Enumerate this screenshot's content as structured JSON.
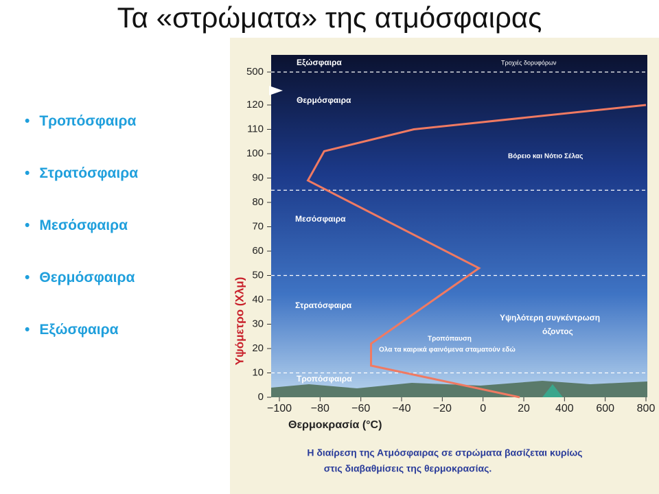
{
  "title": "Τα «στρώματα» της ατμόσφαιρας",
  "bullets": [
    "Τροπόσφαιρα",
    "Στρατόσφαιρα",
    "Μεσόσφαιρα",
    "Θερμόσφαιρα",
    "Εξώσφαιρα"
  ],
  "chart_data": {
    "type": "line",
    "x_label": "Θερμοκρασία (°C)",
    "y_label": "Υψόμετρο (Χλμ)",
    "xticks": [
      {
        "value": -100,
        "label": "−100"
      },
      {
        "value": -80,
        "label": "−80"
      },
      {
        "value": -60,
        "label": "−60"
      },
      {
        "value": -40,
        "label": "−40"
      },
      {
        "value": -20,
        "label": "−20"
      },
      0,
      20,
      400,
      600,
      800
    ],
    "yticks": [
      0,
      10,
      20,
      30,
      40,
      50,
      60,
      70,
      80,
      90,
      100,
      110,
      120,
      500
    ],
    "xlim": [
      -100,
      800
    ],
    "ylim": [
      0,
      500
    ],
    "series": [
      {
        "color": "#f07a62",
        "x": [
          18,
          -55,
          -55,
          -2,
          -86,
          -78,
          -34,
          800
        ],
        "values": [
          0,
          13,
          22,
          53,
          89,
          101,
          110,
          120
        ]
      }
    ],
    "boundaries": [
      10,
      50,
      85,
      500
    ],
    "annotations": [
      "Εξώσφαιρα",
      "Τροχιές δορυφόρων",
      "Θερμόσφαιρα",
      "Βόρειο και Νότιο Σέλας",
      "Μεσόσφαιρα",
      "Στρατόσφαιρα",
      "Υψηλότερη συγκέντρωση",
      "όζοντος",
      "Τροπόπαυση",
      "Ολα τα καιρικά φαινόμενα σταματούν εδώ",
      "Τροπόσφαιρα"
    ],
    "caption": [
      "Η διαίρεση της Ατμόσφαιρας σε στρώματα βασίζεται κυρίως",
      "στις διαβαθμίσεις της θερμοκρασίας."
    ]
  }
}
